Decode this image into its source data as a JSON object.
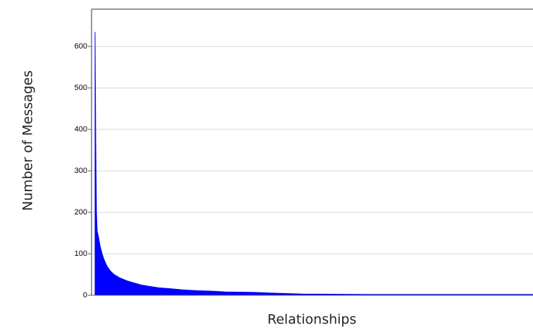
{
  "chart_data": {
    "type": "area",
    "y_label": "Number of Messages",
    "x_label": "Relationships",
    "x": [
      5,
      6,
      7,
      8,
      10,
      12,
      15,
      18,
      22,
      27,
      32,
      40,
      50,
      60,
      70,
      80,
      95,
      110,
      130,
      150,
      170,
      190,
      230,
      260,
      300,
      400,
      500,
      627
    ],
    "values": [
      635,
      365,
      200,
      155,
      140,
      120,
      100,
      85,
      70,
      58,
      50,
      42,
      35,
      30,
      25,
      22,
      18,
      16,
      13,
      11,
      10,
      8,
      7,
      5,
      3,
      2,
      2,
      2
    ],
    "color": "#0000ff",
    "xlim": [
      0,
      627
    ],
    "ylim": [
      0,
      690
    ],
    "yticks": [
      0,
      100,
      200,
      300,
      400,
      500,
      600
    ],
    "grid": true
  }
}
